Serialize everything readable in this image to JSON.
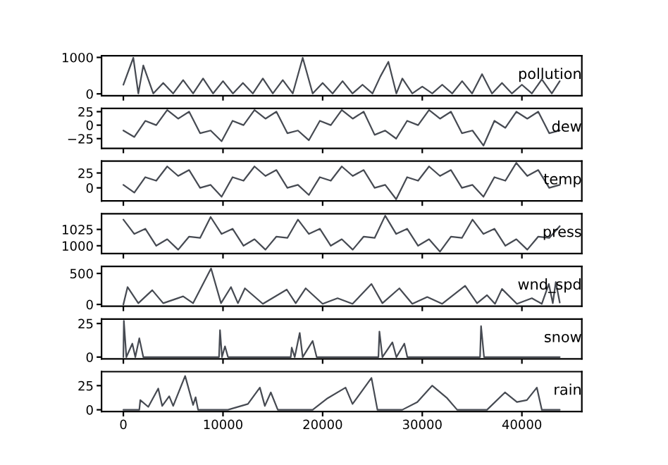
{
  "chart_data": [
    {
      "type": "line",
      "title": "pollution",
      "xlim": [
        -2191,
        46014
      ],
      "xticks": [
        0,
        10000,
        20000,
        30000,
        40000
      ],
      "tick_labels": "y",
      "ylim": [
        -50,
        1044
      ],
      "yticks": [
        0,
        1000
      ],
      "series": [
        {
          "color": "#464a52",
          "x": [
            0,
            1000,
            1500,
            2000,
            3000,
            4000,
            5000,
            6000,
            7000,
            8000,
            9000,
            10000,
            11000,
            12000,
            13000,
            14000,
            15000,
            16000,
            17000,
            18000,
            19000,
            20000,
            21000,
            22000,
            23000,
            24000,
            25000,
            25800,
            26600,
            27400,
            28000,
            29000,
            30000,
            31000,
            32000,
            33000,
            34000,
            35000,
            36000,
            37000,
            38000,
            39000,
            40000,
            41000,
            42000,
            43000,
            43800
          ],
          "values": [
            250,
            990,
            10,
            780,
            10,
            300,
            10,
            380,
            10,
            420,
            10,
            350,
            10,
            300,
            10,
            420,
            10,
            380,
            10,
            990,
            10,
            300,
            10,
            350,
            10,
            250,
            10,
            480,
            880,
            10,
            420,
            10,
            200,
            10,
            250,
            10,
            350,
            10,
            540,
            10,
            300,
            10,
            250,
            10,
            400,
            10,
            350
          ]
        }
      ]
    },
    {
      "type": "line",
      "title": "dew",
      "xlim": [
        -2191,
        46014
      ],
      "xticks": [
        0,
        10000,
        20000,
        30000,
        40000
      ],
      "tick_labels": "y",
      "ylim": [
        -43,
        31
      ],
      "yticks": [
        {
          "value": -25,
          "label": "−25"
        },
        0,
        25
      ],
      "series": [
        {
          "color": "#464a52",
          "x": [
            0,
            1100,
            2200,
            3300,
            4400,
            5500,
            6600,
            7700,
            8760,
            9860,
            10960,
            12060,
            13160,
            14260,
            15360,
            16460,
            17520,
            18620,
            19720,
            20820,
            21920,
            23020,
            24120,
            25220,
            26280,
            27380,
            28480,
            29580,
            30680,
            31780,
            32880,
            33980,
            35040,
            36140,
            37240,
            38340,
            39440,
            40540,
            41640,
            42740,
            43800
          ],
          "values": [
            -10,
            -22,
            8,
            0,
            28,
            12,
            25,
            -15,
            -10,
            -30,
            8,
            0,
            28,
            12,
            25,
            -15,
            -10,
            -28,
            8,
            0,
            28,
            12,
            25,
            -18,
            -10,
            -25,
            8,
            0,
            28,
            12,
            25,
            -15,
            -10,
            -38,
            8,
            -5,
            25,
            12,
            25,
            -15,
            -10
          ]
        }
      ]
    },
    {
      "type": "line",
      "title": "temp",
      "xlim": [
        -2191,
        46014
      ],
      "xticks": [
        0,
        10000,
        20000,
        30000,
        40000
      ],
      "tick_labels": "y",
      "ylim": [
        -22,
        45
      ],
      "yticks": [
        0,
        25
      ],
      "series": [
        {
          "color": "#464a52",
          "x": [
            0,
            1100,
            2200,
            3300,
            4400,
            5500,
            6600,
            7700,
            8760,
            9860,
            10960,
            12060,
            13160,
            14260,
            15360,
            16460,
            17520,
            18620,
            19720,
            20820,
            21920,
            23020,
            24120,
            25220,
            26280,
            27380,
            28480,
            29580,
            30680,
            31780,
            32880,
            33980,
            35040,
            36140,
            37240,
            38340,
            39440,
            40540,
            41640,
            42740,
            43800
          ],
          "values": [
            5,
            -8,
            18,
            12,
            36,
            20,
            30,
            0,
            5,
            -15,
            18,
            12,
            36,
            20,
            30,
            0,
            5,
            -12,
            18,
            12,
            36,
            20,
            30,
            0,
            5,
            -19,
            18,
            12,
            36,
            20,
            30,
            0,
            5,
            -15,
            18,
            12,
            42,
            20,
            30,
            0,
            5
          ]
        }
      ]
    },
    {
      "type": "line",
      "title": "press",
      "xlim": [
        -2191,
        46014
      ],
      "xticks": [
        0,
        10000,
        20000,
        30000,
        40000
      ],
      "tick_labels": "y",
      "ylim": [
        988,
        1049
      ],
      "yticks": [
        1000,
        1025
      ],
      "series": [
        {
          "color": "#464a52",
          "x": [
            0,
            1100,
            2200,
            3300,
            4400,
            5500,
            6600,
            7700,
            8760,
            9860,
            10960,
            12060,
            13160,
            14260,
            15360,
            16460,
            17520,
            18620,
            19720,
            20820,
            21920,
            23020,
            24120,
            25220,
            26280,
            27380,
            28480,
            29580,
            30680,
            31780,
            32880,
            33980,
            35040,
            36140,
            37240,
            38340,
            39440,
            40540,
            41640,
            42740,
            43800
          ],
          "values": [
            1040,
            1018,
            1026,
            1000,
            1010,
            994,
            1014,
            1012,
            1044,
            1018,
            1026,
            1000,
            1010,
            994,
            1014,
            1012,
            1040,
            1018,
            1026,
            1000,
            1010,
            994,
            1014,
            1012,
            1046,
            1018,
            1026,
            1000,
            1010,
            991,
            1014,
            1012,
            1040,
            1018,
            1026,
            1000,
            1010,
            994,
            1014,
            1012,
            1030
          ]
        }
      ]
    },
    {
      "type": "line",
      "title": "wnd_spd",
      "xlim": [
        -2191,
        46014
      ],
      "xticks": [
        0,
        10000,
        20000,
        30000,
        40000
      ],
      "tick_labels": "y",
      "ylim": [
        -29,
        614
      ],
      "yticks": [
        0,
        500
      ],
      "series": [
        {
          "color": "#464a52",
          "x": [
            0,
            420,
            1500,
            2900,
            4000,
            6000,
            7000,
            8800,
            9800,
            10800,
            11500,
            12200,
            14000,
            16400,
            17300,
            18300,
            20000,
            21500,
            23000,
            24900,
            26000,
            27700,
            29000,
            30500,
            32000,
            34300,
            35500,
            36500,
            37300,
            38000,
            39500,
            41000,
            42000,
            42700,
            43100,
            43400,
            43800
          ],
          "values": [
            0,
            280,
            20,
            230,
            20,
            130,
            20,
            580,
            20,
            280,
            20,
            260,
            10,
            240,
            20,
            260,
            10,
            100,
            10,
            330,
            20,
            260,
            10,
            120,
            10,
            300,
            20,
            150,
            10,
            250,
            10,
            100,
            10,
            330,
            20,
            360,
            30
          ]
        }
      ]
    },
    {
      "type": "line",
      "title": "snow",
      "xlim": [
        -2191,
        46014
      ],
      "xticks": [
        0,
        10000,
        20000,
        30000,
        40000
      ],
      "tick_labels": "y",
      "ylim": [
        -1.35,
        28.35
      ],
      "yticks": [
        0,
        25
      ],
      "series": [
        {
          "color": "#464a52",
          "x": [
            0,
            50,
            300,
            900,
            1200,
            1600,
            2000,
            9600,
            9700,
            9900,
            10200,
            10500,
            16800,
            16900,
            17200,
            17700,
            18000,
            19000,
            19400,
            25600,
            25700,
            26000,
            27000,
            27400,
            28200,
            28500,
            35800,
            35900,
            36200,
            43800
          ],
          "values": [
            0,
            27,
            0,
            10,
            0,
            14,
            0,
            0,
            20,
            0,
            8,
            0,
            0,
            7,
            0,
            18,
            0,
            12,
            0,
            0,
            19,
            0,
            11,
            0,
            10,
            0,
            0,
            23,
            0,
            0
          ]
        }
      ]
    },
    {
      "type": "line",
      "title": "rain",
      "xlim": [
        -2191,
        46014
      ],
      "xticks": [
        0,
        10000,
        20000,
        30000,
        40000
      ],
      "ylim": [
        -1.8,
        39.5
      ],
      "yticks": [
        0,
        25
      ],
      "series": [
        {
          "color": "#464a52",
          "x": [
            0,
            1600,
            1700,
            2500,
            3500,
            3900,
            4600,
            5000,
            6200,
            7000,
            7250,
            7500,
            10500,
            12500,
            13700,
            14200,
            14800,
            15500,
            19000,
            20500,
            22300,
            23000,
            24900,
            25500,
            28000,
            29500,
            31000,
            32500,
            33500,
            36500,
            38300,
            39500,
            40500,
            41500,
            42000,
            43800
          ],
          "values": [
            0,
            0,
            10,
            3,
            22,
            4,
            14,
            4,
            35,
            5,
            13,
            0,
            0,
            6,
            23,
            4,
            18,
            0,
            0,
            12,
            23,
            6,
            33,
            0,
            0,
            8,
            25,
            12,
            0,
            0,
            18,
            8,
            10,
            23,
            0,
            0
          ]
        }
      ]
    }
  ]
}
